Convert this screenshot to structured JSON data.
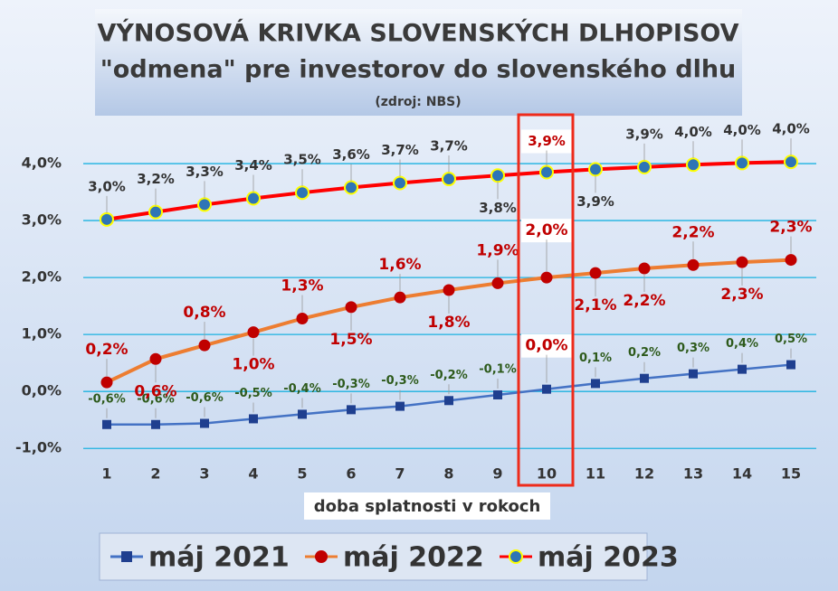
{
  "chart_data": {
    "type": "line",
    "title": "VÝNOSOVÁ KRIVKA SLOVENSKÝCH DLHOPISOV",
    "subtitle": "\"odmena\" pre investorov do slovenského dlhu",
    "source": "(zdroj: NBS)",
    "x_label": "doba splatnosti v rokoch",
    "categories": [
      1,
      2,
      3,
      4,
      5,
      6,
      7,
      8,
      9,
      10,
      11,
      12,
      13,
      14,
      15
    ],
    "ylim": [
      -1.25,
      5.0
    ],
    "yticks": [
      {
        "value": -1,
        "label": "-1,0%"
      },
      {
        "value": 0,
        "label": "0,0%"
      },
      {
        "value": 1,
        "label": "1,0%"
      },
      {
        "value": 2,
        "label": "2,0%"
      },
      {
        "value": 3,
        "label": "3,0%"
      },
      {
        "value": 4,
        "label": "4,0%"
      }
    ],
    "grid": true,
    "legend": "bottom",
    "series": [
      {
        "name": "máj 2021",
        "color": "#1f3f8f",
        "marker": "square",
        "values": [
          -0.58,
          -0.58,
          -0.56,
          -0.48,
          -0.4,
          -0.32,
          -0.26,
          -0.16,
          -0.06,
          0.04,
          0.14,
          0.23,
          0.31,
          0.39,
          0.47
        ],
        "value_labels": [
          "-0,6%",
          "-0,6%",
          "-0,6%",
          "-0,5%",
          "-0,4%",
          "-0,3%",
          "-0,3%",
          "-0,2%",
          "-0,1%",
          "0,0%",
          "0,1%",
          "0,2%",
          "0,3%",
          "0,4%",
          "0,5%"
        ]
      },
      {
        "name": "máj 2022",
        "color": "#ed7d31",
        "marker": "circle",
        "values": [
          0.16,
          0.57,
          0.81,
          1.04,
          1.28,
          1.48,
          1.65,
          1.78,
          1.9,
          2.0,
          2.08,
          2.16,
          2.22,
          2.27,
          2.31
        ],
        "value_labels": [
          "0,2%",
          "0,6%",
          "0,8%",
          "1,0%",
          "1,3%",
          "1,5%",
          "1,6%",
          "1,8%",
          "1,9%",
          "2,0%",
          "2,1%",
          "2,2%",
          "2,2%",
          "2,3%",
          "2,3%"
        ]
      },
      {
        "name": "máj 2023",
        "color": "#ff0000",
        "marker": "ring",
        "values": [
          3.02,
          3.15,
          3.28,
          3.39,
          3.49,
          3.58,
          3.66,
          3.73,
          3.79,
          3.85,
          3.9,
          3.94,
          3.98,
          4.01,
          4.03
        ],
        "value_labels": [
          "3,0%",
          "3,2%",
          "3,3%",
          "3,4%",
          "3,5%",
          "3,6%",
          "3,7%",
          "3,7%",
          "3,8%",
          "3,9%",
          "3,9%",
          "3,9%",
          "4,0%",
          "4,0%",
          "4,0%"
        ]
      }
    ]
  }
}
